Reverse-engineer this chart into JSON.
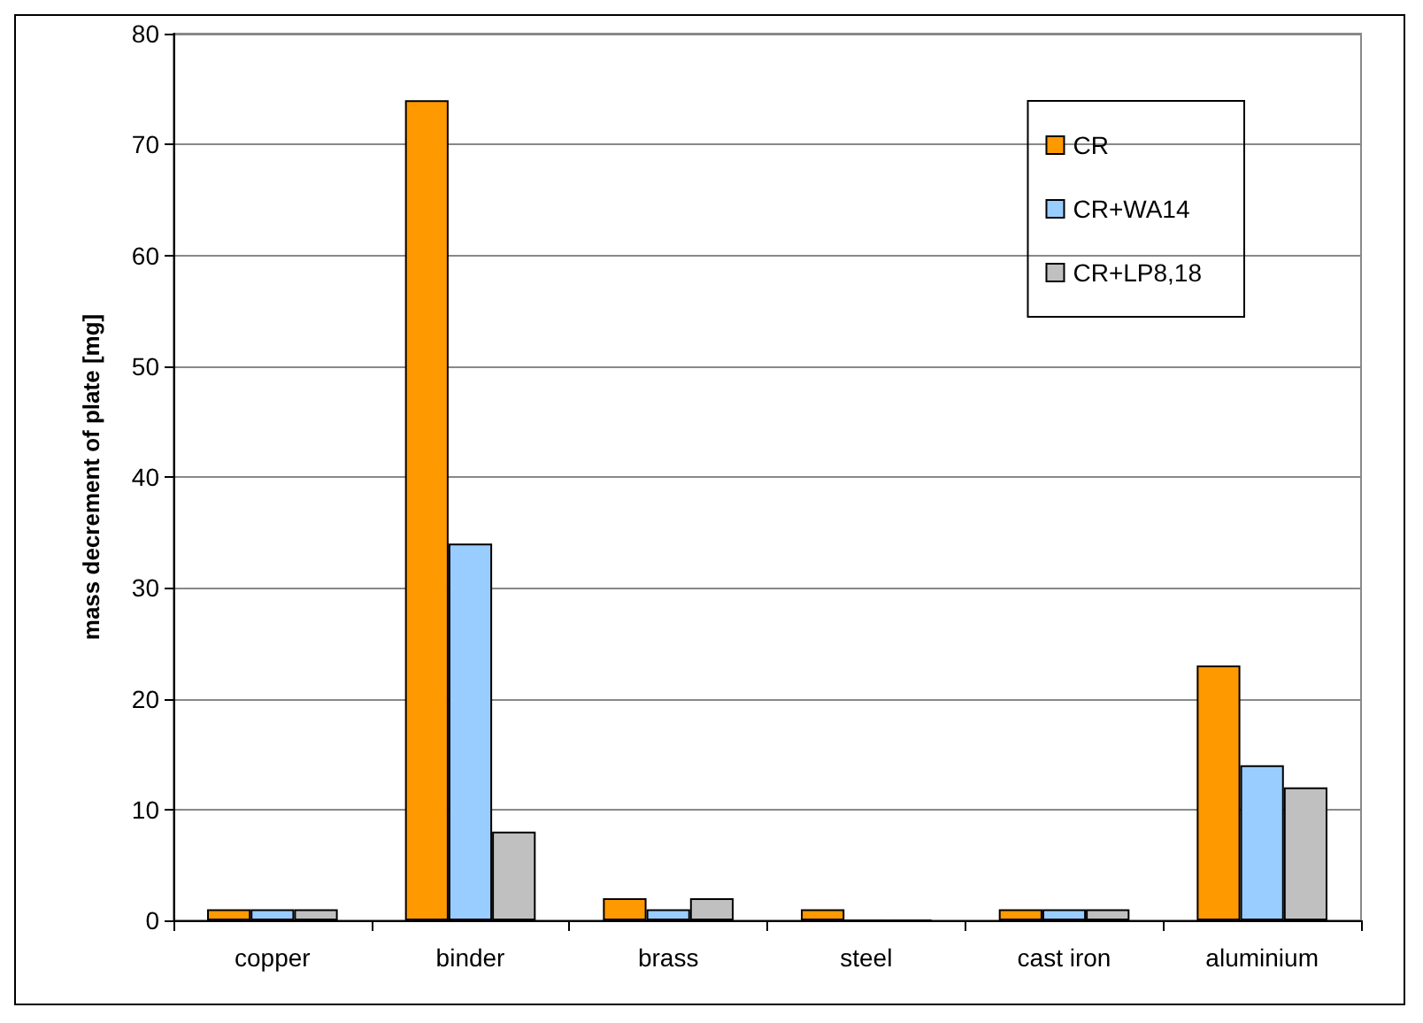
{
  "chart_data": {
    "type": "bar",
    "ylabel": "mass decrement of plate [mg]",
    "categories": [
      "copper",
      "binder",
      "brass",
      "steel",
      "cast iron",
      "aluminium"
    ],
    "series": [
      {
        "name": "CR",
        "color": "#ff9900",
        "values": [
          1,
          74,
          2,
          1,
          1,
          23
        ]
      },
      {
        "name": "CR+WA14",
        "color": "#99ccff",
        "values": [
          1,
          34,
          1,
          0,
          1,
          14
        ]
      },
      {
        "name": "CR+LP8,18",
        "color": "#c0c0c0",
        "values": [
          1,
          8,
          2,
          0,
          1,
          12
        ]
      }
    ],
    "ylim": [
      0,
      80
    ],
    "yticks": [
      0,
      10,
      20,
      30,
      40,
      50,
      60,
      70,
      80
    ],
    "grid": "y",
    "legend": "top right"
  }
}
